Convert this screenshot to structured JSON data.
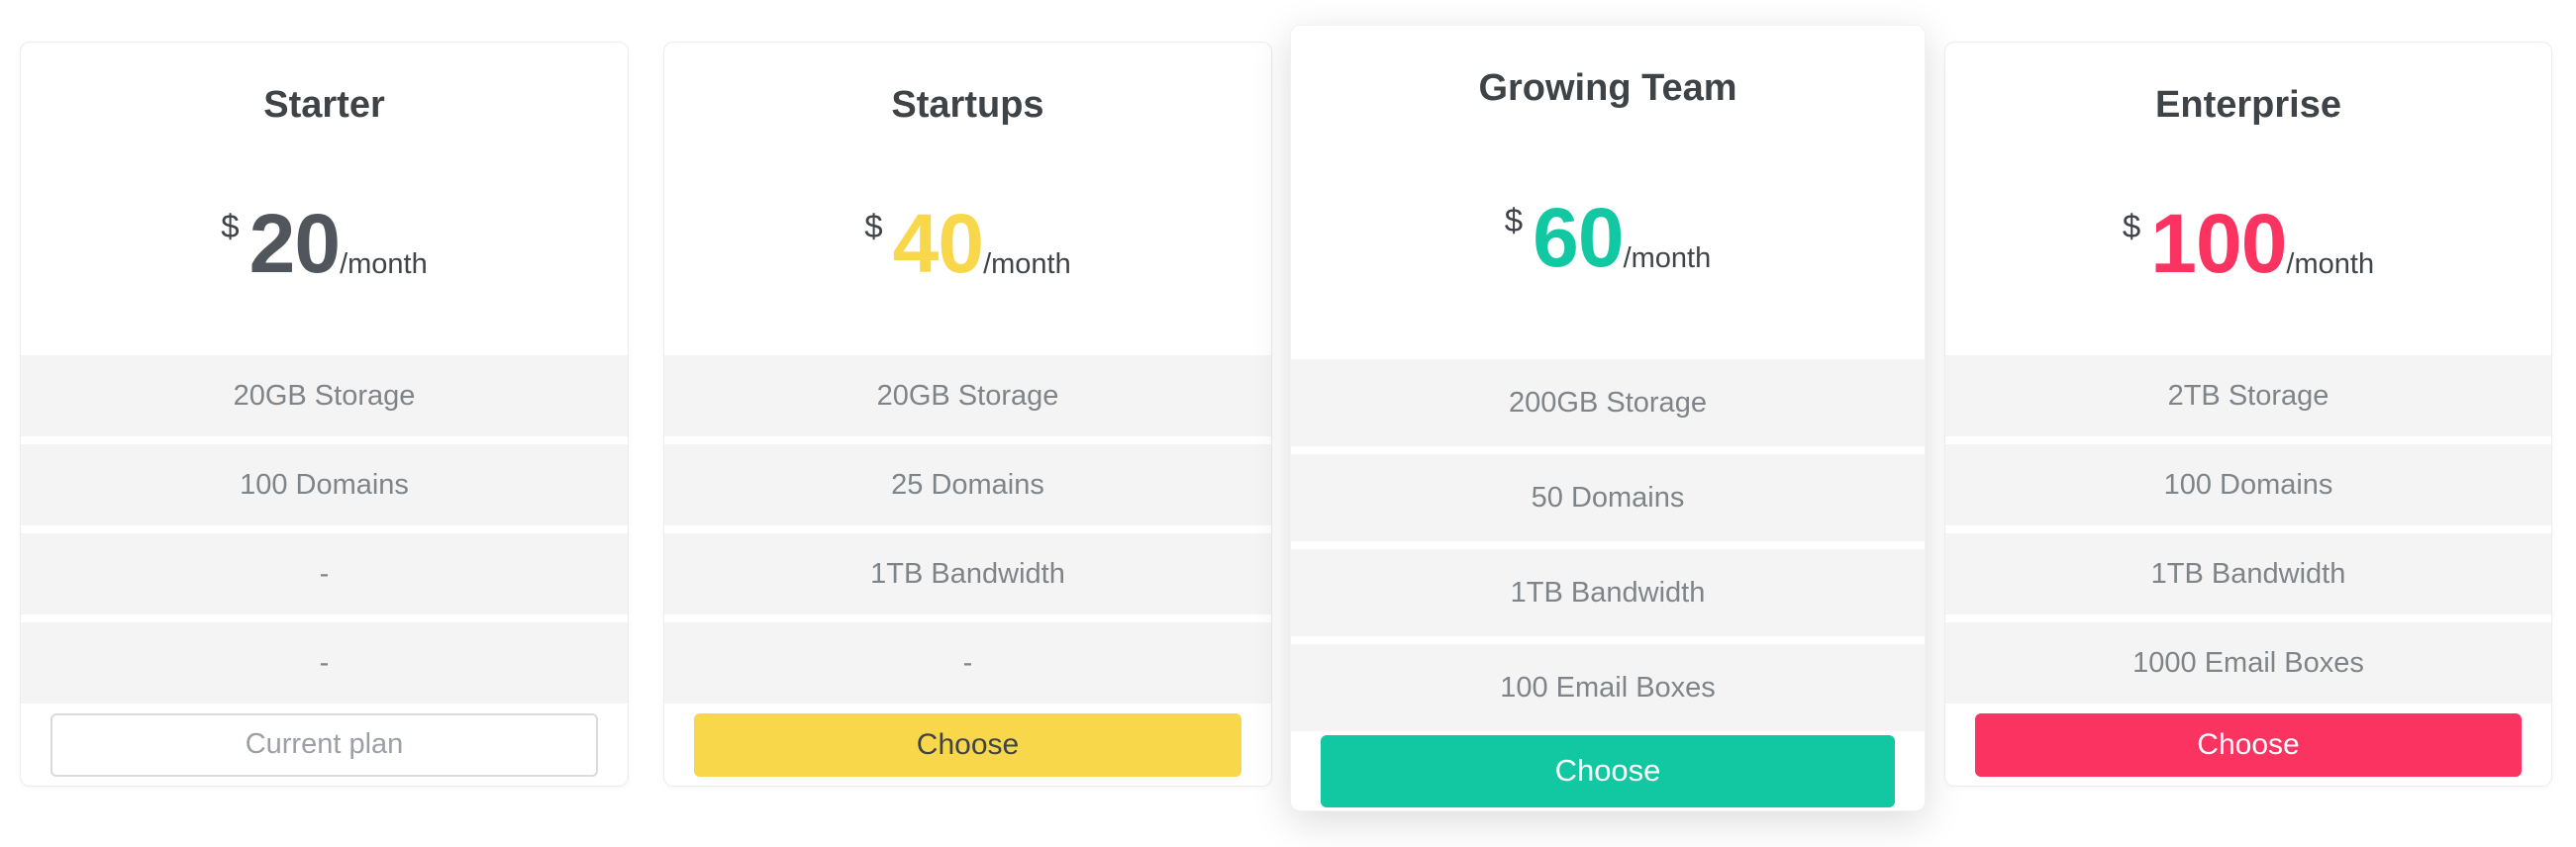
{
  "theme": {
    "page_background": "#ffffff",
    "card_background": "#ffffff",
    "card_border": "#ececee",
    "title_color": "#3e4347",
    "feature_row_background": "#f4f4f5",
    "feature_text_color": "#7f8488",
    "period_text_color": "#3f4449"
  },
  "plans": [
    {
      "name": "Starter",
      "currency": "$",
      "price": "20",
      "period": "/month",
      "featured": false,
      "colors": {
        "accent": "#51565c"
      },
      "features": [
        "20GB Storage",
        "100 Domains",
        "-",
        "-"
      ],
      "button": {
        "label": "Current plan",
        "style": "outline",
        "bg": "#ffffff",
        "text_color": "#9ba0a6",
        "border_color": "#d9dbdf"
      }
    },
    {
      "name": "Startups",
      "currency": "$",
      "price": "40",
      "period": "/month",
      "featured": false,
      "colors": {
        "accent": "#f8d74b"
      },
      "features": [
        "20GB Storage",
        "25 Domains",
        "1TB Bandwidth",
        "-"
      ],
      "button": {
        "label": "Choose",
        "style": "solid",
        "bg": "#f8d74b",
        "text_color": "#3f4449"
      }
    },
    {
      "name": "Growing Team",
      "currency": "$",
      "price": "60",
      "period": "/month",
      "featured": true,
      "colors": {
        "accent": "#11c8a2"
      },
      "features": [
        "200GB Storage",
        "50 Domains",
        "1TB Bandwidth",
        "100 Email Boxes"
      ],
      "button": {
        "label": "Choose",
        "style": "solid",
        "bg": "#11c8a2",
        "text_color": "#ffffff"
      }
    },
    {
      "name": "Enterprise",
      "currency": "$",
      "price": "100",
      "period": "/month",
      "featured": false,
      "colors": {
        "accent": "#fa3360"
      },
      "features": [
        "2TB Storage",
        "100 Domains",
        "1TB Bandwidth",
        "1000 Email Boxes"
      ],
      "button": {
        "label": "Choose",
        "style": "solid",
        "bg": "#fa3360",
        "text_color": "#ffffff"
      }
    }
  ]
}
